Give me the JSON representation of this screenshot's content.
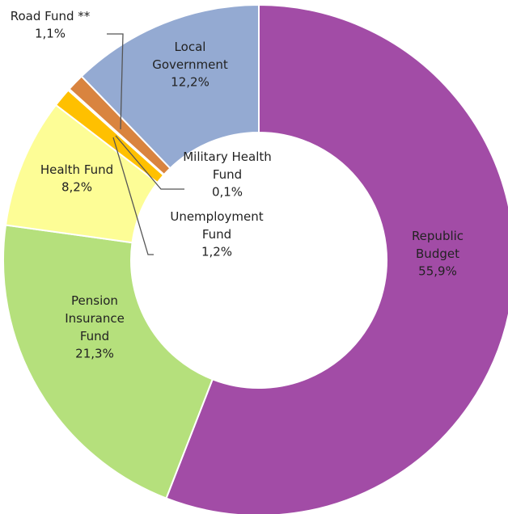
{
  "chart_data": {
    "type": "donut",
    "categories": [
      "Republic Budget",
      "Pension Insurance Fund",
      "Health Fund",
      "Unemployment Fund",
      "Military Health Fund",
      "Road Fund **",
      "Local Government"
    ],
    "values": [
      55.9,
      21.3,
      8.2,
      1.2,
      0.1,
      1.1,
      12.2
    ],
    "value_labels": [
      "55,9%",
      "21,3%",
      "8,2%",
      "1,2%",
      "0,1%",
      "1,1%",
      "12,2%"
    ],
    "colors": [
      "#a24ca6",
      "#b5e07c",
      "#fdfd96",
      "#ffc000",
      "#f4a640",
      "#d9843f",
      "#94aad2"
    ]
  }
}
